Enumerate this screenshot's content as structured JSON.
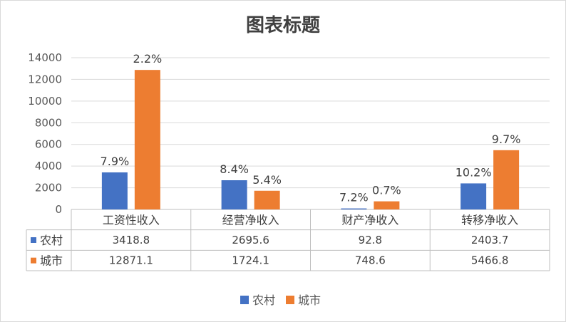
{
  "chart_data": {
    "type": "bar",
    "title": "图表标题",
    "categories": [
      "工资性收入",
      "经营净收入",
      "财产净收入",
      "转移净收入"
    ],
    "series": [
      {
        "name": "农村",
        "color": "#4472C4",
        "values": [
          3418.8,
          2695.6,
          92.8,
          2403.7
        ],
        "labels": [
          "7.9%",
          "8.4%",
          "7.2%",
          "10.2%"
        ]
      },
      {
        "name": "城市",
        "color": "#ED7D31",
        "values": [
          12871.1,
          1724.1,
          748.6,
          5466.8
        ],
        "labels": [
          "2.2%",
          "5.4%",
          "0.7%",
          "9.7%"
        ]
      }
    ],
    "table_values": [
      [
        "3418.8",
        "2695.6",
        "92.8",
        "2403.7"
      ],
      [
        "12871.1",
        "1724.1",
        "748.6",
        "5466.8"
      ]
    ],
    "ylim": [
      0,
      14000
    ],
    "yticks": [
      "0",
      "2000",
      "4000",
      "6000",
      "8000",
      "10000",
      "12000",
      "14000"
    ],
    "grid": true,
    "legend": "bottom",
    "data_table": true
  }
}
